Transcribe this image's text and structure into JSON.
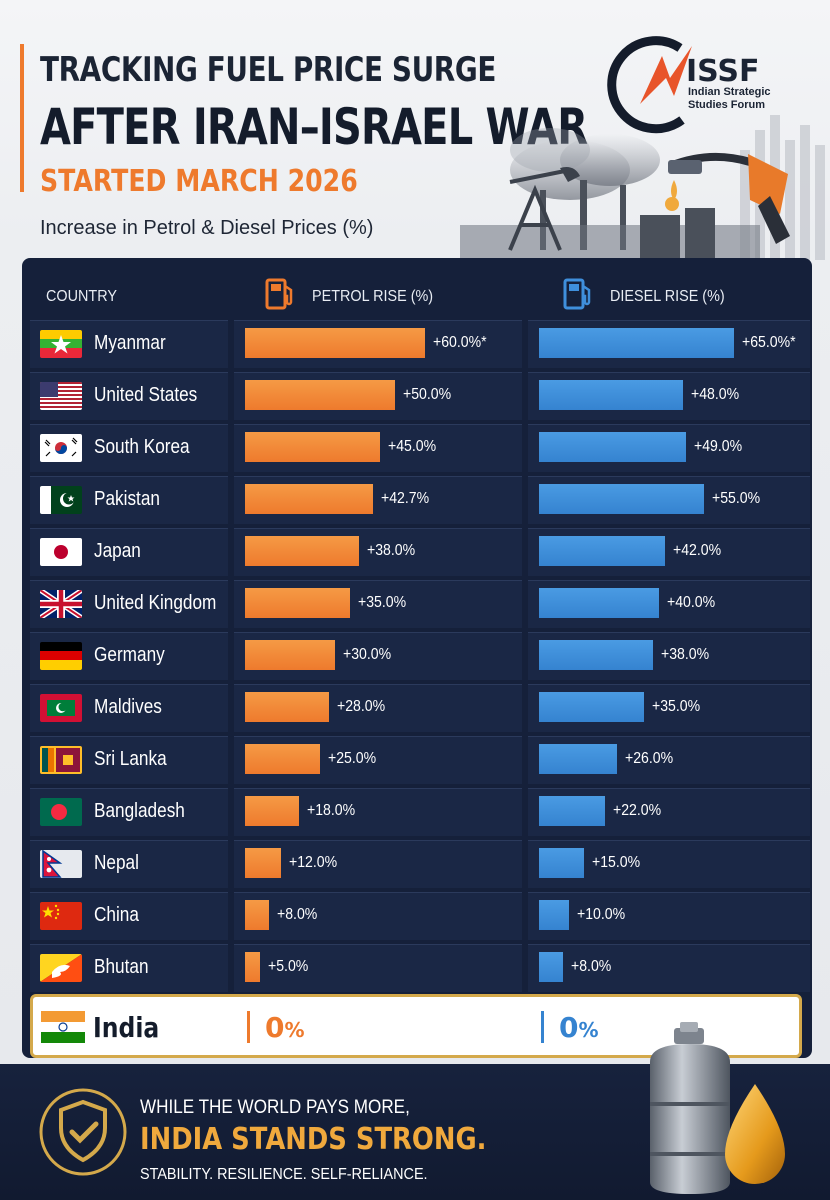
{
  "header": {
    "line1": "TRACKING FUEL PRICE SURGE",
    "line2": "AFTER IRAN–ISRAEL WAR",
    "line3": "STARTED MARCH 2026",
    "subtitle": "Increase in Petrol & Diesel Prices (%)"
  },
  "logo": {
    "title": "ISSF",
    "subtitle": "Indian Strategic Studies Forum",
    "icon": "issf-logo-icon"
  },
  "table": {
    "col_country": "COUNTRY",
    "col_petrol": "PETROL RISE (%)",
    "col_diesel": "DIESEL RISE (%)"
  },
  "colors": {
    "petrol": "#ee7a2d",
    "diesel": "#3583d0",
    "panel": "#15203a",
    "gold": "#f0a93d"
  },
  "chart_data": {
    "type": "bar",
    "title": "Increase in Petrol & Diesel Prices (%)",
    "orientation": "horizontal",
    "categories": [
      "Myanmar",
      "United States",
      "South Korea",
      "Pakistan",
      "Japan",
      "United Kingdom",
      "Germany",
      "Maldives",
      "Sri Lanka",
      "Bangladesh",
      "Nepal",
      "China",
      "Bhutan",
      "India"
    ],
    "series": [
      {
        "name": "PETROL RISE (%)",
        "values": [
          60.0,
          50.0,
          45.0,
          42.7,
          38.0,
          35.0,
          30.0,
          28.0,
          25.0,
          18.0,
          12.0,
          8.0,
          5.0,
          0
        ],
        "labels": [
          "+60.0%*",
          "+50.0%",
          "+45.0%",
          "+42.7%",
          "+38.0%",
          "+35.0%",
          "+30.0%",
          "+28.0%",
          "+25.0%",
          "+18.0%",
          "+12.0%",
          "+8.0%",
          "+5.0%",
          "0%"
        ]
      },
      {
        "name": "DIESEL RISE (%)",
        "values": [
          65.0,
          48.0,
          49.0,
          55.0,
          42.0,
          40.0,
          38.0,
          35.0,
          26.0,
          22.0,
          15.0,
          10.0,
          8.0,
          0
        ],
        "labels": [
          "+65.0%*",
          "+48.0%",
          "+49.0%",
          "+55.0%",
          "+42.0%",
          "+40.0%",
          "+38.0%",
          "+35.0%",
          "+26.0%",
          "+22.0%",
          "+15.0%",
          "+10.0%",
          "+8.0%",
          "0%"
        ]
      }
    ],
    "xlim": [
      0,
      65
    ],
    "flags": [
      "myanmar-flag-icon",
      "usa-flag-icon",
      "south-korea-flag-icon",
      "pakistan-flag-icon",
      "japan-flag-icon",
      "uk-flag-icon",
      "germany-flag-icon",
      "maldives-flag-icon",
      "sri-lanka-flag-icon",
      "bangladesh-flag-icon",
      "nepal-flag-icon",
      "china-flag-icon",
      "bhutan-flag-icon",
      "india-flag-icon"
    ],
    "highlight": "India"
  },
  "india": {
    "name": "India",
    "petrol_num": "0",
    "petrol_unit": "%",
    "diesel_num": "0",
    "diesel_unit": "%"
  },
  "footer": {
    "line1": "WHILE THE WORLD PAYS MORE,",
    "line2": "INDIA STANDS STRONG.",
    "line3": "STABILITY. RESILIENCE. SELF-RELIANCE."
  }
}
